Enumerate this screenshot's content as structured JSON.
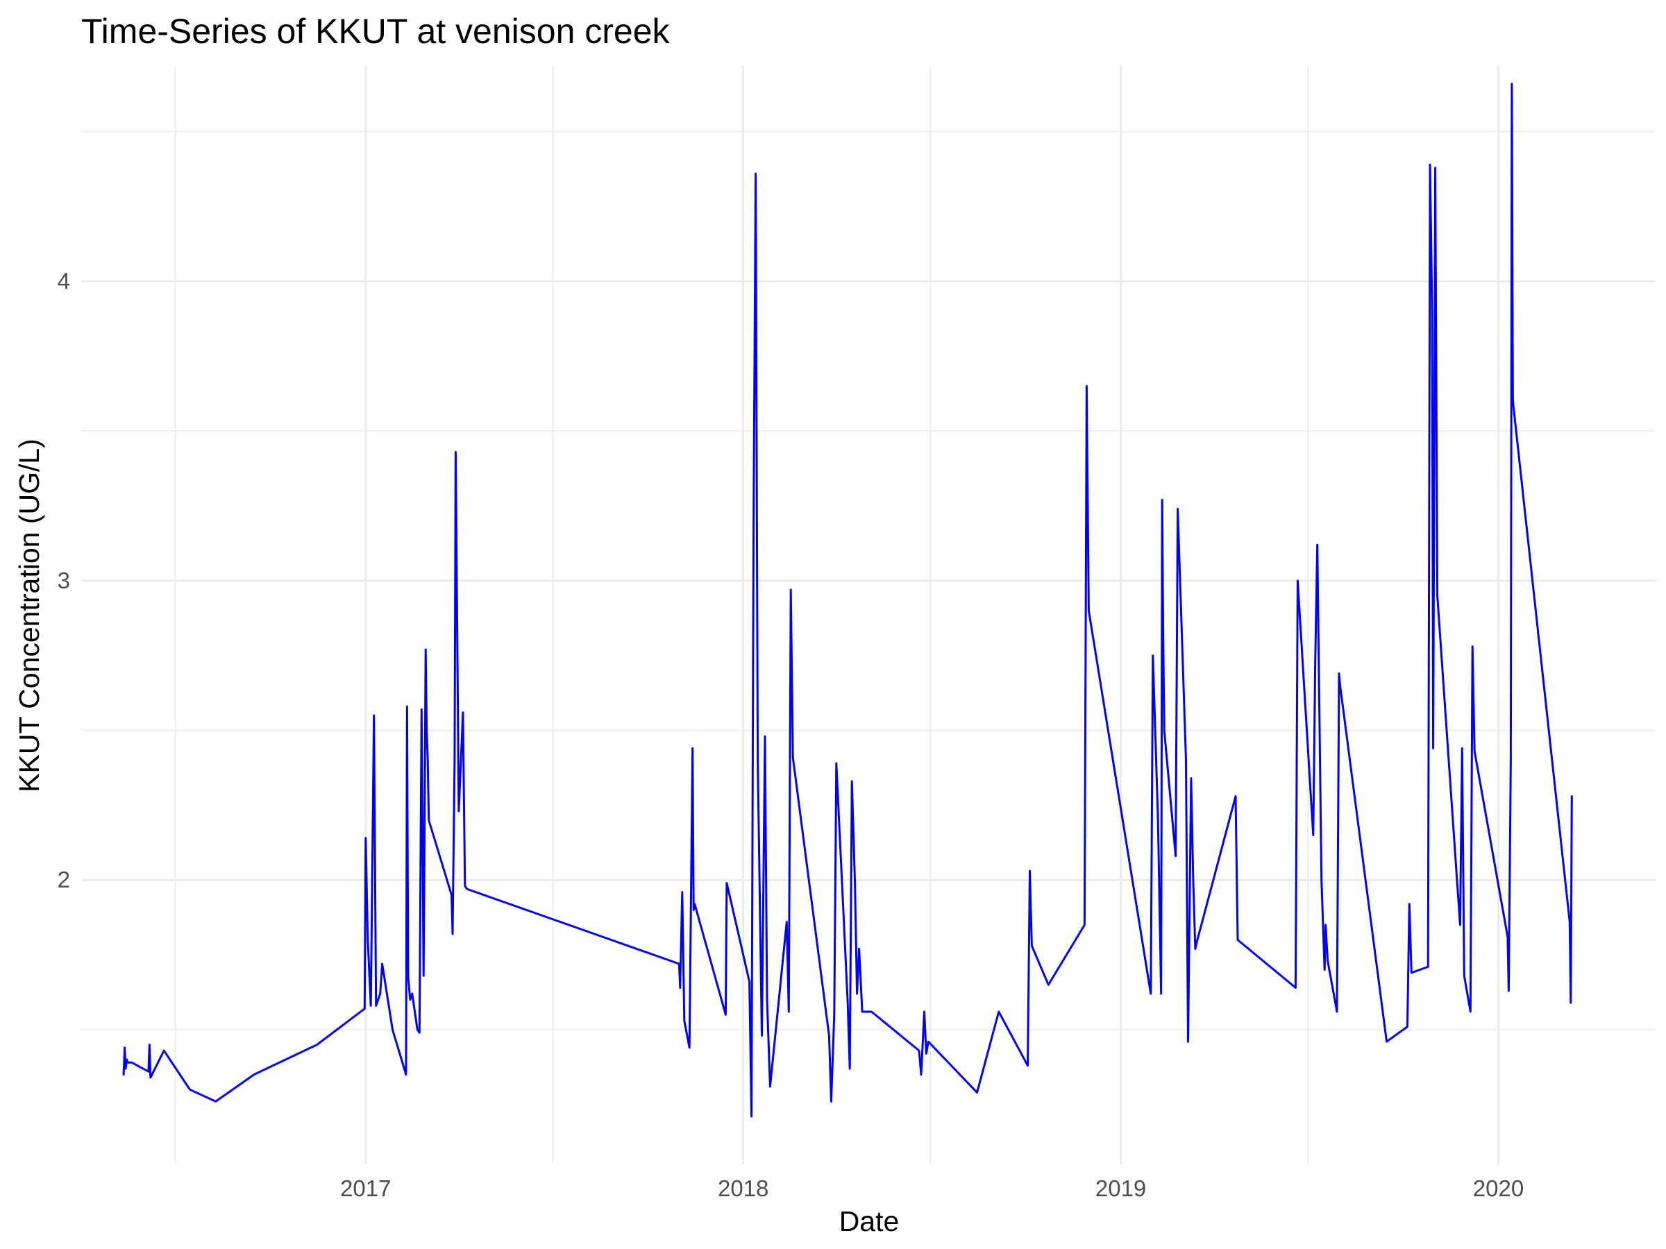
{
  "chart_data": {
    "type": "line",
    "title": "Time-Series of KKUT at venison creek",
    "xlabel": "Date",
    "ylabel": "KKUT Concentration (UG/L)",
    "x_ticks": [
      "2017",
      "2018",
      "2019",
      "2020"
    ],
    "y_ticks": [
      2,
      3,
      4
    ],
    "xlim": [
      "2016-04-01",
      "2020-06-01"
    ],
    "ylim": [
      1.05,
      4.72
    ],
    "grid": true,
    "legend": "none",
    "line_color": "#0000ff",
    "series": [
      {
        "x": [
          "2016-05-12",
          "2016-05-13",
          "2016-05-14",
          "2016-05-15",
          "2016-05-16",
          "2016-05-18",
          "2016-05-20",
          "2016-06-05",
          "2016-06-06",
          "2016-06-07",
          "2016-06-20",
          "2016-07-15",
          "2016-08-09",
          "2016-09-15",
          "2016-11-15",
          "2016-12-31",
          "2017-01-01",
          "2017-01-03",
          "2017-01-06",
          "2017-01-09",
          "2017-01-11",
          "2017-01-13",
          "2017-01-15",
          "2017-01-17",
          "2017-01-27",
          "2017-02-09",
          "2017-02-10",
          "2017-02-11",
          "2017-02-13",
          "2017-02-15",
          "2017-02-20",
          "2017-02-22",
          "2017-02-24",
          "2017-02-26",
          "2017-02-28",
          "2017-03-01",
          "2017-03-02",
          "2017-03-03",
          "2017-03-25",
          "2017-03-26",
          "2017-03-28",
          "2017-03-29",
          "2017-04-01",
          "2017-04-05",
          "2017-04-07",
          "2017-04-09",
          "2017-10-31",
          "2017-11-01",
          "2017-11-03",
          "2017-11-05",
          "2017-11-10",
          "2017-11-13",
          "2017-11-14",
          "2017-11-15",
          "2017-12-15",
          "2017-12-16",
          "2018-01-07",
          "2018-01-09",
          "2018-01-11",
          "2018-01-13",
          "2018-01-15",
          "2018-01-19",
          "2018-01-22",
          "2018-01-24",
          "2018-01-27",
          "2018-02-12",
          "2018-02-14",
          "2018-02-16",
          "2018-02-18",
          "2018-03-25",
          "2018-03-27",
          "2018-03-30",
          "2018-04-01",
          "2018-04-12",
          "2018-04-14",
          "2018-04-16",
          "2018-04-19",
          "2018-04-21",
          "2018-04-23",
          "2018-04-26",
          "2018-05-05",
          "2018-06-20",
          "2018-06-22",
          "2018-06-25",
          "2018-06-27",
          "2018-06-29",
          "2018-08-15",
          "2018-09-05",
          "2018-10-03",
          "2018-10-05",
          "2018-10-07",
          "2018-10-23",
          "2018-11-27",
          "2018-11-29",
          "2018-12-01",
          "2019-01-30",
          "2019-02-01",
          "2019-02-06",
          "2019-02-09",
          "2019-02-10",
          "2019-02-11",
          "2019-02-12",
          "2019-02-23",
          "2019-02-25",
          "2019-03-05",
          "2019-03-07",
          "2019-03-10",
          "2019-03-12",
          "2019-03-14",
          "2019-03-16",
          "2019-04-22",
          "2019-04-24",
          "2019-06-19",
          "2019-06-21",
          "2019-07-06",
          "2019-07-08",
          "2019-07-10",
          "2019-07-14",
          "2019-07-17",
          "2019-07-18",
          "2019-07-20",
          "2019-07-29",
          "2019-07-31",
          "2019-08-01",
          "2019-09-15",
          "2019-10-05",
          "2019-10-07",
          "2019-10-09",
          "2019-10-25",
          "2019-10-27",
          "2019-10-29",
          "2019-10-30",
          "2019-11-01",
          "2019-11-03",
          "2019-11-25",
          "2019-11-27",
          "2019-11-29",
          "2019-12-05",
          "2019-12-07",
          "2019-12-09",
          "2020-01-10",
          "2020-01-11",
          "2020-01-13",
          "2020-01-14",
          "2020-01-15",
          "2020-03-10",
          "2020-03-11",
          "2020-03-12"
        ],
        "y": [
          1.35,
          1.44,
          1.37,
          1.4,
          1.39,
          1.39,
          1.39,
          1.36,
          1.45,
          1.34,
          1.43,
          1.3,
          1.26,
          1.35,
          1.45,
          1.57,
          2.14,
          1.8,
          1.58,
          2.55,
          1.58,
          1.6,
          1.62,
          1.72,
          1.5,
          1.35,
          2.58,
          1.68,
          1.6,
          1.62,
          1.5,
          1.49,
          2.57,
          1.68,
          2.77,
          2.5,
          2.4,
          2.2,
          1.95,
          1.82,
          2.4,
          3.43,
          2.23,
          2.56,
          1.98,
          1.97,
          1.72,
          1.64,
          1.96,
          1.53,
          1.44,
          2.44,
          1.9,
          1.92,
          1.55,
          1.99,
          1.66,
          1.21,
          3.2,
          4.36,
          2.4,
          1.48,
          2.48,
          1.6,
          1.31,
          1.86,
          1.56,
          2.97,
          2.41,
          1.48,
          1.26,
          1.55,
          2.39,
          1.59,
          1.37,
          2.33,
          1.99,
          1.62,
          1.77,
          1.56,
          1.56,
          1.43,
          1.35,
          1.56,
          1.42,
          1.46,
          1.29,
          1.56,
          1.38,
          2.03,
          1.78,
          1.65,
          1.85,
          3.65,
          2.9,
          1.62,
          2.75,
          2.2,
          1.62,
          3.27,
          2.8,
          2.5,
          2.08,
          3.24,
          2.4,
          1.46,
          2.34,
          2.0,
          1.77,
          1.8,
          2.28,
          1.8,
          1.64,
          3.0,
          2.15,
          2.73,
          3.12,
          2.0,
          1.7,
          1.85,
          1.73,
          1.56,
          2.69,
          2.65,
          1.46,
          1.51,
          1.92,
          1.69,
          1.71,
          4.39,
          3.9,
          2.44,
          4.38,
          2.95,
          1.85,
          2.44,
          1.68,
          1.56,
          2.78,
          2.43,
          1.81,
          1.63,
          2.4,
          4.66,
          3.6,
          1.86,
          1.59,
          2.28
        ]
      }
    ]
  }
}
